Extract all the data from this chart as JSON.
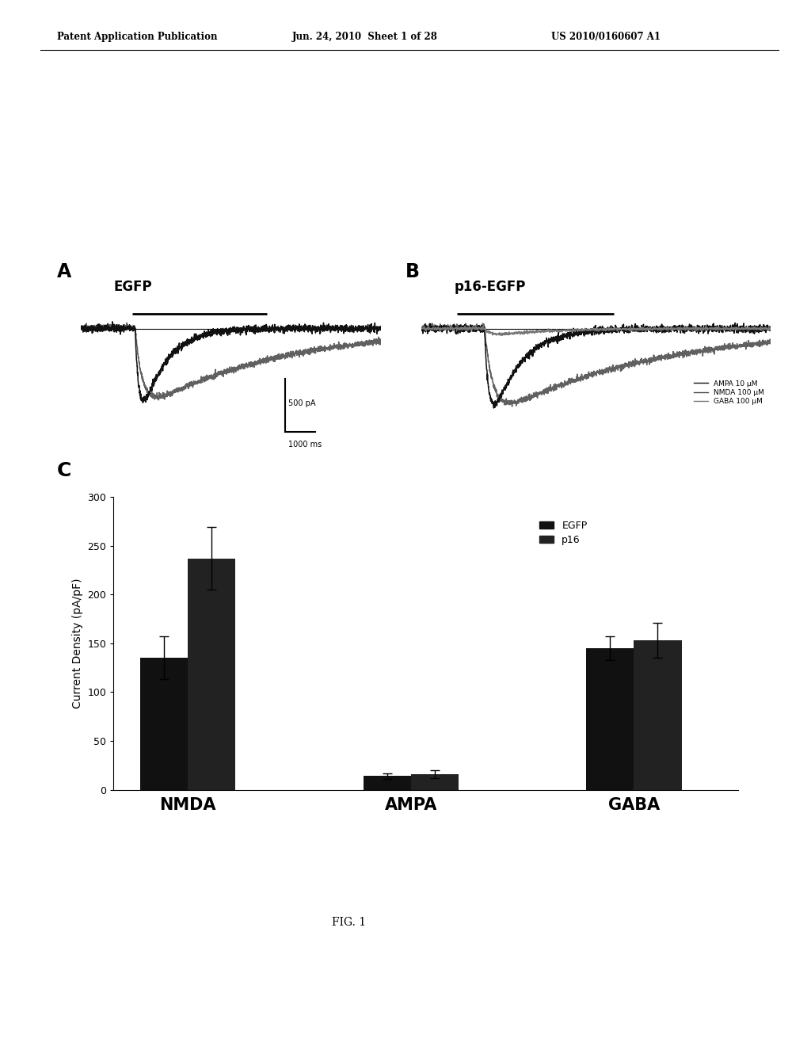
{
  "header_left": "Patent Application Publication",
  "header_mid": "Jun. 24, 2010  Sheet 1 of 28",
  "header_right": "US 2010/0160607 A1",
  "panel_A_title": "EGFP",
  "panel_B_title": "p16-EGFP",
  "panel_C_label": "C",
  "fig_label": "FIG. 1",
  "scalebar_x_label": "1000 ms",
  "scalebar_y_label": "500 pA",
  "legend_lines": [
    "AMPA 10 μM",
    "NMDA 100 μM",
    "GABA 100 μM"
  ],
  "bar_groups": [
    "NMDA",
    "AMPA",
    "GABA"
  ],
  "egfp_values": [
    135,
    14,
    145
  ],
  "egfp_errors": [
    22,
    3,
    12
  ],
  "p16_values": [
    237,
    16,
    153
  ],
  "p16_errors": [
    32,
    4,
    18
  ],
  "bar_color_egfp": "#111111",
  "bar_color_p16": "#222222",
  "ylabel": "Current Density (pA/pF)",
  "ylim": [
    0,
    300
  ],
  "yticks": [
    0,
    50,
    100,
    150,
    200,
    250,
    300
  ],
  "background_color": "#ffffff",
  "text_color": "#000000",
  "legend_labels": [
    "EGFP",
    "p16"
  ],
  "panel_A_label": "A",
  "panel_B_label": "B"
}
